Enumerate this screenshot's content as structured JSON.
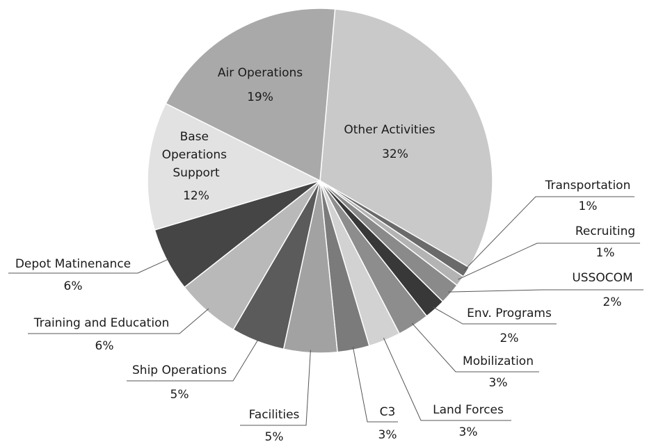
{
  "chart_data": {
    "type": "pie",
    "categories": [
      "Other Activities",
      "Transportation",
      "Recruiting",
      "USSOCOM",
      "Env. Programs",
      "Mobilization",
      "Land Forces",
      "C3",
      "Facilities",
      "Ship Operations",
      "Training and Education",
      "Depot Matinenance",
      "Base Operations Support",
      "Air Operations"
    ],
    "values": [
      32,
      1,
      1,
      2,
      2,
      3,
      3,
      3,
      5,
      5,
      6,
      6,
      12,
      19
    ],
    "value_labels": [
      "32%",
      "1%",
      "1%",
      "2%",
      "2%",
      "3%",
      "3%",
      "3%",
      "5%",
      "5%",
      "6%",
      "6%",
      "12%",
      "19%"
    ],
    "colors": [
      "#c9c9c9",
      "#6a6a6a",
      "#b3b3b3",
      "#8a8a8a",
      "#383838",
      "#8d8d8d",
      "#d2d2d2",
      "#7b7b7b",
      "#a2a2a2",
      "#5b5b5b",
      "#b9b9b9",
      "#454545",
      "#e2e2e2",
      "#a9a9a9"
    ]
  }
}
